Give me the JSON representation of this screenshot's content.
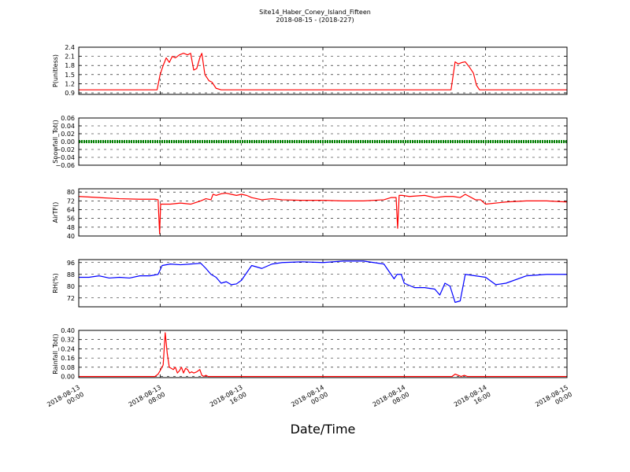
{
  "figure": {
    "title": "Site14_Haber_Coney_Island_Fifteen",
    "subtitle": "2018-08-15 - (2018-227)",
    "xlabel": "Date/Time"
  },
  "chart_data": [
    {
      "type": "line",
      "ylabel": "P(unitless)",
      "ylim": [
        0.85,
        2.4
      ],
      "yticks": [
        "0.9",
        "1.2",
        "1.5",
        "1.8",
        "2.1",
        "2.4"
      ],
      "grid": true,
      "x_range_hours": [
        0,
        48
      ],
      "series": [
        {
          "color": "#ff0000",
          "x": [
            0,
            7.7,
            8.0,
            8.3,
            8.6,
            8.9,
            9.2,
            9.5,
            9.9,
            10.3,
            10.7,
            11.0,
            11.3,
            11.6,
            11.9,
            12.1,
            12.4,
            12.8,
            13.1,
            13.5,
            14.0,
            36.6,
            37.0,
            37.3,
            37.7,
            38.0,
            38.4,
            38.8,
            39.1,
            39.4,
            39.8,
            48
          ],
          "y": [
            1.0,
            1.0,
            1.5,
            1.8,
            2.05,
            1.9,
            2.1,
            2.05,
            2.15,
            2.2,
            2.15,
            2.2,
            1.65,
            1.7,
            2.05,
            2.2,
            1.5,
            1.3,
            1.25,
            1.05,
            1.0,
            1.0,
            1.92,
            1.85,
            1.9,
            1.92,
            1.75,
            1.55,
            1.15,
            1.0,
            1.0,
            1.0
          ]
        }
      ]
    },
    {
      "type": "line",
      "ylabel": "Snowfall_Tot()",
      "ylim": [
        -0.06,
        0.06
      ],
      "yticks": [
        "−0.06",
        "−0.04",
        "−0.02",
        "0.00",
        "0.02",
        "0.04",
        "0.06"
      ],
      "grid": true,
      "x_range_hours": [
        0,
        48
      ],
      "series": [
        {
          "color": "#008000",
          "style": "thick-dotted",
          "x": [
            0,
            48
          ],
          "y": [
            0.0,
            0.0
          ]
        }
      ]
    },
    {
      "type": "line",
      "ylabel": "AirTF()",
      "ylim": [
        40,
        83
      ],
      "yticks": [
        "40",
        "48",
        "56",
        "64",
        "72",
        "80"
      ],
      "grid": true,
      "x_range_hours": [
        0,
        48
      ],
      "series": [
        {
          "color": "#ff0000",
          "x": [
            0,
            2,
            4,
            6,
            7.5,
            7.8,
            7.95,
            8.05,
            8.3,
            9,
            10,
            11,
            12,
            12.5,
            13,
            13.2,
            13.5,
            14,
            14.5,
            15,
            15.5,
            16,
            16.5,
            17,
            18,
            19,
            20,
            22,
            24,
            26,
            28,
            30,
            30.7,
            31.2,
            31.35,
            31.5,
            31.8,
            32.5,
            34,
            35,
            36,
            36.8,
            37.5,
            38,
            39,
            39.5,
            40,
            42,
            44,
            46,
            48
          ],
          "y": [
            76,
            75,
            74,
            73.5,
            73.5,
            73,
            42,
            69,
            69,
            69,
            70,
            69,
            72,
            74,
            73,
            78,
            77,
            78.5,
            79,
            78,
            77,
            78,
            77,
            75,
            73,
            74,
            73,
            72.5,
            72.5,
            72,
            72,
            73,
            75,
            75,
            47,
            77,
            77,
            76,
            77,
            75,
            76,
            76,
            75,
            78,
            73,
            73,
            69,
            71,
            72,
            72,
            71
          ]
        }
      ]
    },
    {
      "type": "line",
      "ylabel": "RH(%)",
      "ylim": [
        66,
        98
      ],
      "yticks": [
        "72",
        "80",
        "88",
        "96"
      ],
      "grid": true,
      "x_range_hours": [
        0,
        48
      ],
      "series": [
        {
          "color": "#0000ff",
          "x": [
            0,
            1,
            2,
            3,
            4,
            5,
            6,
            7,
            7.8,
            8.2,
            9,
            10,
            11,
            12,
            12.5,
            13,
            13.5,
            14,
            14.5,
            15,
            15.5,
            16,
            16.5,
            17,
            18,
            19,
            20,
            22,
            24,
            26,
            28,
            30,
            31,
            31.3,
            31.7,
            32,
            33,
            34,
            35,
            35.5,
            36,
            36.5,
            37,
            37.5,
            38,
            39,
            40,
            41,
            42,
            44,
            46,
            48
          ],
          "y": [
            86,
            86,
            87,
            85.5,
            86,
            85.5,
            87,
            87,
            88,
            94,
            95,
            94.5,
            95,
            95.5,
            92,
            88,
            86,
            82,
            83,
            81,
            81.5,
            84,
            89,
            94,
            92,
            95,
            96,
            96.5,
            96,
            97,
            97,
            95,
            85,
            88,
            88,
            82,
            79,
            79,
            78,
            74,
            82,
            80,
            69,
            70,
            88,
            87,
            86,
            81,
            82,
            87,
            88,
            88
          ]
        }
      ]
    },
    {
      "type": "line",
      "ylabel": "Rainfall_Tot()",
      "ylim": [
        -0.01,
        0.4
      ],
      "yticks": [
        "0.00",
        "0.08",
        "0.16",
        "0.24",
        "0.32",
        "0.40"
      ],
      "grid": true,
      "x_range_hours": [
        0,
        48
      ],
      "xticks": [
        [
          "2018-08-13",
          "00:00"
        ],
        [
          "2018-08-13",
          "08:00"
        ],
        [
          "2018-08-13",
          "16:00"
        ],
        [
          "2018-08-14",
          "00:00"
        ],
        [
          "2018-08-14",
          "08:00"
        ],
        [
          "2018-08-14",
          "16:00"
        ],
        [
          "2018-08-15",
          "00:00"
        ]
      ],
      "series": [
        {
          "color": "#ff0000",
          "x": [
            0,
            7.5,
            7.8,
            8.0,
            8.3,
            8.5,
            8.7,
            8.9,
            9.1,
            9.3,
            9.5,
            9.7,
            9.9,
            10.1,
            10.3,
            10.5,
            10.7,
            10.9,
            11.1,
            11.3,
            11.6,
            11.9,
            12.1,
            12.3,
            12.5,
            12.7,
            36.7,
            37.0,
            37.3,
            37.6,
            37.9,
            38.2,
            38.5,
            48
          ],
          "y": [
            0,
            0,
            0.02,
            0.05,
            0.1,
            0.38,
            0.2,
            0.08,
            0.07,
            0.06,
            0.08,
            0.03,
            0.05,
            0.08,
            0.03,
            0.07,
            0.06,
            0.03,
            0.04,
            0.03,
            0.04,
            0.06,
            0.01,
            0.0,
            0.01,
            0,
            0,
            0.02,
            0.01,
            0.0,
            0.01,
            0.0,
            0.0,
            0
          ]
        }
      ]
    }
  ]
}
